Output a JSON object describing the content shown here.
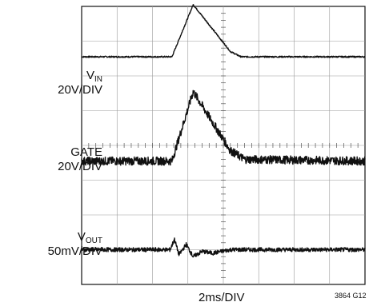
{
  "labels": {
    "vin_main": "V",
    "vin_sub": "IN",
    "vin_scale": "20V/DIV",
    "gate_main": "GATE",
    "gate_scale": "20V/DIV",
    "vout_main": "V",
    "vout_sub": "OUT",
    "vout_scale": "50mV/DIV",
    "time_div": "2ms/DIV",
    "figure_id": "3864 G12"
  },
  "chart_data": {
    "type": "line",
    "title": "",
    "xlabel": "2ms/DIV",
    "ylabel": "",
    "grid": true,
    "x_divisions": 8,
    "y_divisions": 8,
    "xlim": [
      0,
      8
    ],
    "ylim": [
      0,
      8
    ],
    "series": [
      {
        "name": "VIN",
        "scale": "20V/DIV",
        "noise": 0.02,
        "x": [
          0,
          2.55,
          3.15,
          4.2,
          4.5,
          8
        ],
        "y": [
          6.55,
          6.55,
          8.05,
          6.7,
          6.55,
          6.55
        ]
      },
      {
        "name": "GATE",
        "scale": "20V/DIV",
        "noise": 0.12,
        "x": [
          0,
          2.55,
          3.15,
          4.2,
          4.6,
          8
        ],
        "y": [
          3.55,
          3.55,
          5.55,
          3.85,
          3.6,
          3.55
        ]
      },
      {
        "name": "VOUT",
        "scale": "50mV/DIV",
        "noise": 0.06,
        "x": [
          0,
          2.5,
          2.62,
          2.75,
          2.95,
          3.15,
          3.4,
          3.7,
          4.2,
          8
        ],
        "y": [
          1.0,
          1.0,
          1.3,
          0.85,
          1.15,
          0.8,
          0.95,
          0.9,
          1.0,
          1.0
        ]
      }
    ]
  }
}
